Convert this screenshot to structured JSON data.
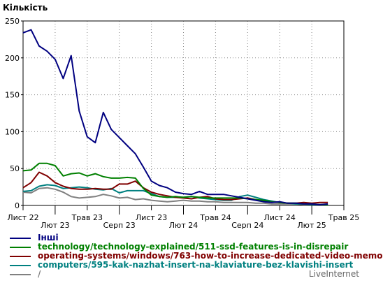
{
  "chart_data": {
    "type": "line",
    "ylabel": "Кількість",
    "ylim": [
      0,
      250
    ],
    "y_ticks": [
      0,
      50,
      100,
      150,
      200,
      250
    ],
    "grid": "dotted",
    "x_count": 39,
    "x_ticks": [
      {
        "index": 0,
        "label": "Лист 22",
        "row": 1
      },
      {
        "index": 4,
        "label": "Лют 23",
        "row": 2
      },
      {
        "index": 8,
        "label": "Трав 23",
        "row": 1
      },
      {
        "index": 12,
        "label": "Серп 23",
        "row": 2
      },
      {
        "index": 16,
        "label": "Лист 23",
        "row": 1
      },
      {
        "index": 20,
        "label": "Лют 24",
        "row": 2
      },
      {
        "index": 24,
        "label": "Трав 24",
        "row": 1
      },
      {
        "index": 28,
        "label": "Серп 24",
        "row": 2
      },
      {
        "index": 32,
        "label": "Лист 24",
        "row": 1
      },
      {
        "index": 36,
        "label": "Лют 25",
        "row": 2
      },
      {
        "index": 40,
        "label": "Трав 25",
        "row": 1
      }
    ],
    "series": [
      {
        "name": "Інші",
        "color": "#000080",
        "values": [
          234,
          238,
          216,
          209,
          198,
          172,
          203,
          128,
          93,
          85,
          126,
          103,
          92,
          81,
          70,
          52,
          33,
          27,
          24,
          18,
          16,
          15,
          19,
          15,
          15,
          15,
          13,
          11,
          9,
          7,
          5,
          4,
          5,
          3,
          3,
          2,
          2,
          1,
          2
        ]
      },
      {
        "name": "technology/technology-explained/511-ssd-features-is-in-disrepair",
        "color": "#008000",
        "values": [
          47,
          48,
          57,
          57,
          54,
          40,
          43,
          44,
          40,
          43,
          39,
          37,
          37,
          38,
          37,
          23,
          14,
          12,
          11,
          12,
          11,
          12,
          11,
          10,
          10,
          10,
          10,
          10,
          9,
          8,
          7,
          5,
          4,
          3,
          3,
          2,
          2,
          1,
          1
        ]
      },
      {
        "name": "operating-systems/windows/763-how-to-increase-dedicated-video-memo",
        "color": "#800000",
        "values": [
          24,
          31,
          45,
          40,
          31,
          26,
          23,
          22,
          22,
          23,
          22,
          22,
          29,
          29,
          33,
          24,
          18,
          15,
          13,
          11,
          10,
          9,
          11,
          12,
          9,
          8,
          8,
          9,
          10,
          8,
          6,
          5,
          4,
          3,
          3,
          4,
          3,
          4,
          4
        ]
      },
      {
        "name": "computers/595-kak-nazhat-insert-na-klaviature-bez-klavishi-insert",
        "color": "#008080",
        "values": [
          19,
          20,
          26,
          28,
          27,
          23,
          24,
          25,
          24,
          22,
          21,
          23,
          17,
          20,
          20,
          20,
          16,
          12,
          11,
          11,
          11,
          12,
          10,
          9,
          8,
          7,
          7,
          12,
          14,
          11,
          8,
          6,
          4,
          3,
          2,
          2,
          1,
          1,
          1
        ]
      },
      {
        "name": "/",
        "color": "#808080",
        "values": [
          18,
          17,
          23,
          24,
          22,
          18,
          12,
          10,
          11,
          12,
          15,
          13,
          10,
          11,
          8,
          9,
          7,
          6,
          5,
          6,
          7,
          6,
          6,
          5,
          5,
          4,
          4,
          4,
          4,
          3,
          3,
          2,
          2,
          2,
          2,
          1,
          1,
          1,
          1
        ]
      }
    ]
  },
  "watermark": "LiveInternet"
}
